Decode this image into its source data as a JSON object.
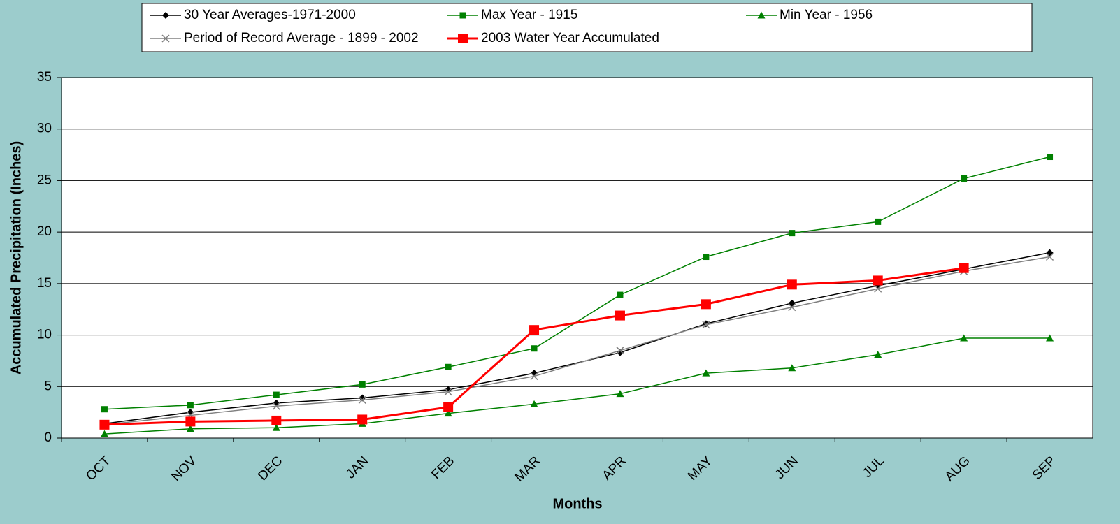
{
  "chart_data": {
    "type": "line",
    "x_label": "Months",
    "y_label": "Accumulated Precipitation (Inches)",
    "categories": [
      "OCT",
      "NOV",
      "DEC",
      "JAN",
      "FEB",
      "MAR",
      "APR",
      "MAY",
      "JUN",
      "JUL",
      "AUG",
      "SEP"
    ],
    "ylim": [
      0,
      35
    ],
    "yticks": [
      0,
      5,
      10,
      15,
      20,
      25,
      30,
      35
    ],
    "grid": true,
    "legend": "top",
    "series": [
      {
        "name": "30 Year Averages-1971-2000",
        "color": "#000000",
        "marker": "diamond",
        "width": 1.5,
        "values": [
          1.4,
          2.5,
          3.4,
          3.9,
          4.7,
          6.3,
          8.3,
          11.1,
          13.1,
          14.8,
          16.4,
          18.0
        ]
      },
      {
        "name": "Max Year - 1915",
        "color": "#008000",
        "marker": "square",
        "width": 1.5,
        "values": [
          2.8,
          3.2,
          4.2,
          5.2,
          6.9,
          8.7,
          13.9,
          17.6,
          19.9,
          21.0,
          25.2,
          27.3
        ]
      },
      {
        "name": "Min Year - 1956",
        "color": "#008000",
        "marker": "triangle",
        "width": 1.5,
        "values": [
          0.4,
          0.9,
          1.0,
          1.4,
          2.4,
          3.3,
          4.3,
          6.3,
          6.8,
          8.1,
          9.7,
          9.7
        ]
      },
      {
        "name": "Period of Record Average - 1899 - 2002",
        "color": "#808080",
        "marker": "x",
        "width": 1.5,
        "values": [
          1.3,
          2.2,
          3.1,
          3.7,
          4.5,
          6.0,
          8.5,
          11.0,
          12.7,
          14.5,
          16.2,
          17.6
        ]
      },
      {
        "name": "2003 Water Year Accumulated",
        "color": "#ff0000",
        "marker": "bigsquare",
        "width": 3,
        "values": [
          1.3,
          1.6,
          1.7,
          1.8,
          3.0,
          10.5,
          11.9,
          13.0,
          14.9,
          15.3,
          16.5,
          null
        ]
      }
    ]
  }
}
